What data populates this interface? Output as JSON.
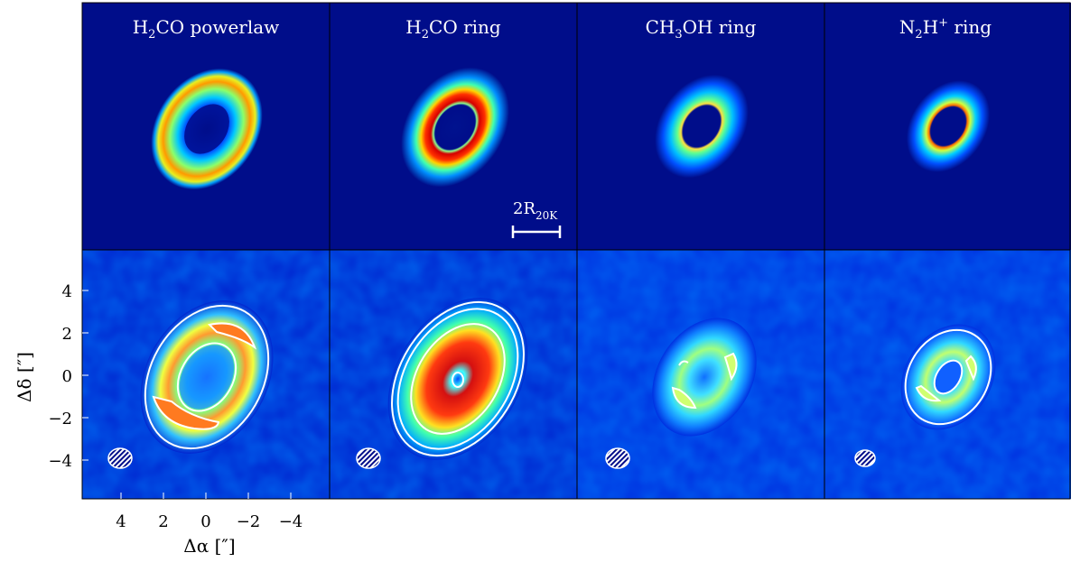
{
  "panels": [
    {
      "title_main": "H",
      "title_sub": "2",
      "title_rest": "CO powerlaw",
      "title_sup": ""
    },
    {
      "title_main": "H",
      "title_sub": "2",
      "title_rest": "CO ring",
      "title_sup": ""
    },
    {
      "title_main": "CH",
      "title_sub": "3",
      "title_rest": "OH ring",
      "title_sup": ""
    },
    {
      "title_main": "N",
      "title_sub": "2",
      "title_rest": "H",
      "title_sup": "+",
      "title_tail": " ring"
    }
  ],
  "scalebar": {
    "label_main": "2R",
    "label_sub": "20K"
  },
  "axes": {
    "ylabel": "Δδ [″]",
    "xlabel": "Δα [″]",
    "yticks": [
      "4",
      "2",
      "0",
      "−2",
      "−4"
    ],
    "xticks": [
      "4",
      "2",
      "0",
      "−2",
      "−4"
    ]
  },
  "colors": {
    "background": "#000d8a",
    "panel_border": "#000000",
    "contour": "#ffffff"
  },
  "chart_data": {
    "type": "heatmap",
    "layout": "2 rows x 4 columns; top row = models, bottom row = observations/simulated images",
    "columns": [
      "H2CO powerlaw",
      "H2CO ring",
      "CH3OH ring",
      "N2H+ ring"
    ],
    "xlabel": "Δα [″]",
    "ylabel": "Δδ [″]",
    "xlim": [
      6,
      -6
    ],
    "ylim": [
      -6,
      6
    ],
    "colormap": "jet",
    "contours": "white, bottom row",
    "beam": "hatched ellipse, lower-left"
  }
}
